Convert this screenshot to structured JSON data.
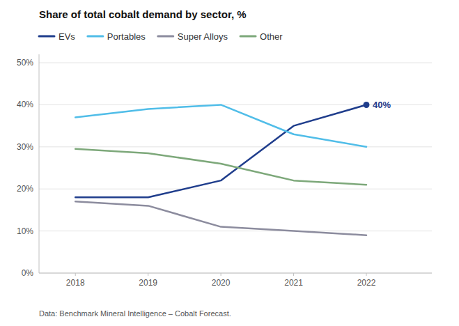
{
  "chart_data": {
    "type": "line",
    "title": "Share of total cobalt demand by sector, %",
    "source": "Data: Benchmark Mineral Intelligence – Cobalt Forecast.",
    "x": [
      2018,
      2019,
      2020,
      2021,
      2022
    ],
    "series": [
      {
        "name": "EVs",
        "color": "#1f3d8c",
        "values": [
          0.18,
          0.18,
          0.22,
          0.35,
          0.4
        ],
        "marker": "last"
      },
      {
        "name": "Portables",
        "color": "#50bde8",
        "values": [
          0.37,
          0.39,
          0.4,
          0.33,
          0.3
        ]
      },
      {
        "name": "Super Alloys",
        "color": "#8c8c9e",
        "values": [
          0.17,
          0.16,
          0.11,
          0.1,
          0.09
        ]
      },
      {
        "name": "Other",
        "color": "#7da87a",
        "values": [
          0.295,
          0.285,
          0.26,
          0.22,
          0.21
        ]
      }
    ],
    "annotations": [
      {
        "text": "40%",
        "x": 2022,
        "y": 0.4,
        "color": "#1f3d8c"
      }
    ],
    "xlim": [
      2017.5,
      2022.9
    ],
    "xticks": [
      2018,
      2019,
      2020,
      2021,
      2022
    ],
    "ylim": [
      0,
      0.52
    ],
    "yticks": [
      {
        "value": 0.0,
        "label": "0%"
      },
      {
        "value": 0.1,
        "label": "10%"
      },
      {
        "value": 0.2,
        "label": "20%"
      },
      {
        "value": 0.3,
        "label": "30%"
      },
      {
        "value": 0.4,
        "label": "40%"
      },
      {
        "value": 0.5,
        "label": "50%"
      }
    ],
    "grid": true,
    "legend": "top-left"
  }
}
